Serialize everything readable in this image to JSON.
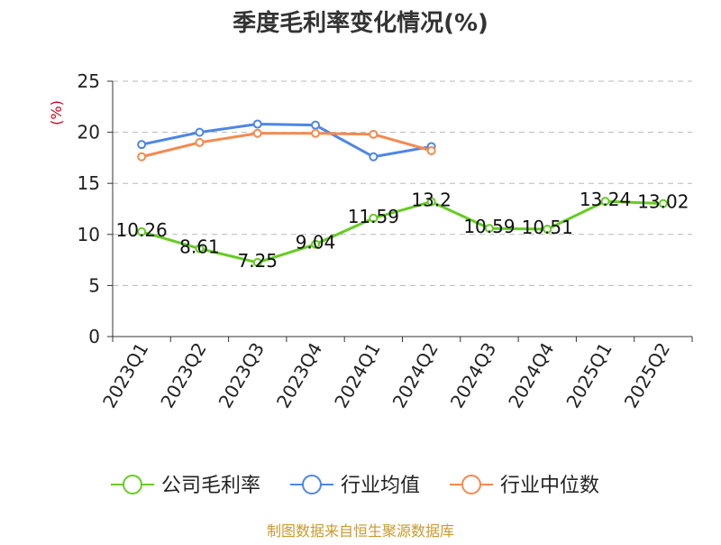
{
  "chart_data": {
    "type": "line",
    "title": "季度毛利率变化情况(%)",
    "ylabel": "(%)",
    "xlabel": "",
    "ylim": [
      0,
      25
    ],
    "yticks": [
      0,
      5,
      10,
      15,
      20,
      25
    ],
    "grid": true,
    "legend_position": "bottom",
    "categories": [
      "2023Q1",
      "2023Q2",
      "2023Q3",
      "2023Q4",
      "2024Q1",
      "2024Q2",
      "2024Q3",
      "2024Q4",
      "2025Q1",
      "2025Q2"
    ],
    "series": [
      {
        "name": "公司毛利率",
        "color": "#66cc22",
        "values": [
          10.26,
          8.61,
          7.25,
          9.04,
          11.59,
          13.2,
          10.59,
          10.51,
          13.24,
          13.02
        ],
        "labels": [
          "10.26",
          "8.61",
          "7.25",
          "9.04",
          "11.59",
          "13.2",
          "10.59",
          "10.51",
          "13.24",
          "13.02"
        ],
        "show_labels": true
      },
      {
        "name": "行业均值",
        "color": "#4e86e4",
        "values": [
          18.8,
          20.0,
          20.8,
          20.7,
          17.6,
          18.6,
          null,
          null,
          null,
          null
        ],
        "show_labels": false
      },
      {
        "name": "行业中位数",
        "color": "#f5894f",
        "values": [
          17.6,
          19.0,
          19.9,
          19.9,
          19.8,
          18.2,
          null,
          null,
          null,
          null
        ],
        "show_labels": false
      }
    ]
  },
  "source": "制图数据来自恒生聚源数据库"
}
